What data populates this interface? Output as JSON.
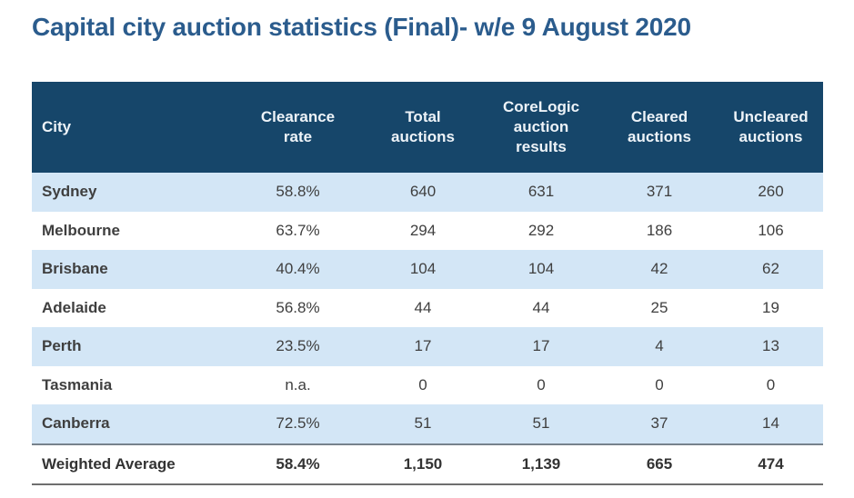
{
  "page": {
    "title": "Capital city auction statistics (Final)- w/e 9 August 2020"
  },
  "chart_data": {
    "type": "table",
    "title": "Capital city auction statistics (Final)- w/e 9 August 2020",
    "columns": [
      "City",
      "Clearance rate",
      "Total auctions",
      "CoreLogic auction results",
      "Cleared auctions",
      "Uncleared auctions"
    ],
    "rows": [
      [
        "Sydney",
        "58.8%",
        "640",
        "631",
        "371",
        "260"
      ],
      [
        "Melbourne",
        "63.7%",
        "294",
        "292",
        "186",
        "106"
      ],
      [
        "Brisbane",
        "40.4%",
        "104",
        "104",
        "42",
        "62"
      ],
      [
        "Adelaide",
        "56.8%",
        "44",
        "44",
        "25",
        "19"
      ],
      [
        "Perth",
        "23.5%",
        "17",
        "17",
        "4",
        "13"
      ],
      [
        "Tasmania",
        "n.a.",
        "0",
        "0",
        "0",
        "0"
      ],
      [
        "Canberra",
        "72.5%",
        "51",
        "51",
        "37",
        "14"
      ],
      [
        "Weighted Average",
        "58.4%",
        "1,150",
        "1,139",
        "665",
        "474"
      ]
    ],
    "layout": {
      "header_style": "dark navy band, white bold text, centered",
      "row_striping": "odd rows light blue, even rows white",
      "total_row": "Weighted Average, bold, separated by rules above and below"
    },
    "colors": {
      "header_bg": "#16466A",
      "header_text": "#EDF3F8",
      "stripe_bg": "#D3E6F6",
      "title_text": "#2B5C8D",
      "body_text": "#3F3F3F"
    }
  }
}
